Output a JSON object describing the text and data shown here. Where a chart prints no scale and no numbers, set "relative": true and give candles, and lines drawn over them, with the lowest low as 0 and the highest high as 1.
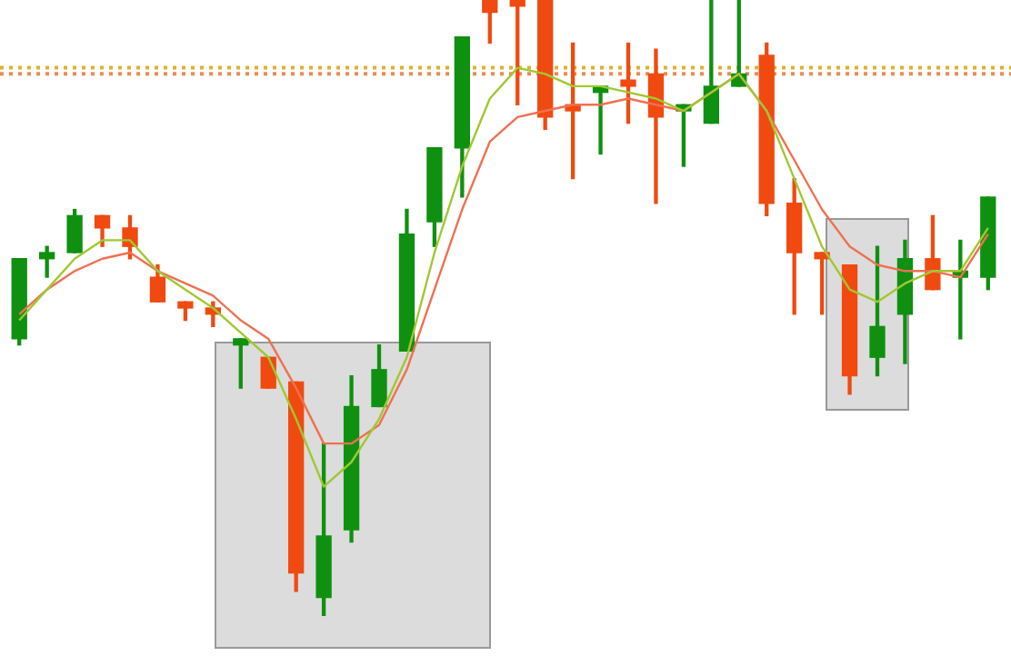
{
  "chart_data": {
    "type": "candlestick",
    "relative": true,
    "categories": [
      null,
      null,
      null,
      null,
      null,
      null,
      null,
      null,
      null,
      null,
      null,
      null,
      null,
      null,
      null,
      null,
      null,
      null,
      null,
      null,
      null,
      null,
      null,
      null,
      null,
      null,
      null,
      null,
      null,
      null,
      null,
      null,
      null,
      null,
      null,
      null
    ],
    "ohlc": [
      [
        0.45,
        0.58,
        0.44,
        0.58
      ],
      [
        0.58,
        0.6,
        0.55,
        0.59
      ],
      [
        0.59,
        0.66,
        0.59,
        0.65
      ],
      [
        0.65,
        0.65,
        0.6,
        0.63
      ],
      [
        0.63,
        0.65,
        0.58,
        0.6
      ],
      [
        0.55,
        0.57,
        0.51,
        0.51
      ],
      [
        0.51,
        0.51,
        0.48,
        0.5
      ],
      [
        0.5,
        0.51,
        0.47,
        0.49
      ],
      [
        0.44,
        0.45,
        0.37,
        0.45
      ],
      [
        0.42,
        0.42,
        0.37,
        0.37
      ],
      [
        0.38,
        0.38,
        0.04,
        0.07
      ],
      [
        0.03,
        0.28,
        0,
        0.13
      ],
      [
        0.14,
        0.39,
        0.12,
        0.34
      ],
      [
        0.34,
        0.44,
        0.34,
        0.4
      ],
      [
        0.43,
        0.66,
        0.43,
        0.62
      ],
      [
        0.64,
        0.76,
        0.6,
        0.76
      ],
      [
        0.76,
        0.94,
        0.68,
        0.94
      ],
      [
        1,
        1,
        0.93,
        0.98
      ],
      [
        1,
        1,
        0.83,
        0.99
      ],
      [
        1,
        1,
        0.79,
        0.81
      ],
      [
        0.83,
        0.93,
        0.71,
        0.82
      ],
      [
        0.85,
        0.86,
        0.75,
        0.86
      ],
      [
        0.87,
        0.93,
        0.8,
        0.86
      ],
      [
        0.88,
        0.92,
        0.67,
        0.81
      ],
      [
        0.82,
        0.83,
        0.73,
        0.83
      ],
      [
        0.8,
        1,
        0.8,
        0.86
      ],
      [
        0.86,
        1,
        0.86,
        0.88
      ],
      [
        0.91,
        0.93,
        0.65,
        0.67
      ],
      [
        0.67,
        0.71,
        0.49,
        0.59
      ],
      [
        0.59,
        0.59,
        0.49,
        0.58
      ],
      [
        0.57,
        0.57,
        0.36,
        0.39
      ],
      [
        0.42,
        0.6,
        0.39,
        0.47
      ],
      [
        0.49,
        0.61,
        0.41,
        0.58
      ],
      [
        0.58,
        0.65,
        0.53,
        0.53
      ],
      [
        0.55,
        0.61,
        0.45,
        0.56
      ],
      [
        0.55,
        0.68,
        0.53,
        0.68
      ]
    ],
    "colors": [
      "#109010",
      "#109010",
      "#109010",
      "#f04a10",
      "#f04a10",
      "#f04a10",
      "#f04a10",
      "#f04a10",
      "#109010",
      "#f04a10",
      "#f04a10",
      "#109010",
      "#109010",
      "#109010",
      "#109010",
      "#109010",
      "#109010",
      "#f04a10",
      "#f04a10",
      "#f04a10",
      "#f04a10",
      "#109010",
      "#f04a10",
      "#f04a10",
      "#109010",
      "#109010",
      "#109010",
      "#f04a10",
      "#f04a10",
      "#f04a10",
      "#f04a10",
      "#109010",
      "#109010",
      "#f04a10",
      "#109010",
      "#109010"
    ],
    "series": [
      {
        "type": "line",
        "color": "#a0c830",
        "values": [
          0.48,
          0.53,
          0.58,
          0.61,
          0.61,
          0.56,
          0.53,
          0.5,
          0.46,
          0.42,
          0.32,
          0.21,
          0.25,
          0.32,
          0.42,
          0.59,
          0.73,
          0.84,
          0.89,
          0.88,
          0.86,
          0.86,
          0.85,
          0.84,
          0.82,
          0.85,
          0.88,
          0.82,
          0.71,
          0.6,
          0.53,
          0.51,
          0.54,
          0.56,
          0.56,
          0.63
        ]
      },
      {
        "type": "line",
        "color": "#f07050",
        "values": [
          0.49,
          0.53,
          0.56,
          0.58,
          0.59,
          0.56,
          0.54,
          0.52,
          0.48,
          0.45,
          0.37,
          0.28,
          0.28,
          0.31,
          0.4,
          0.53,
          0.66,
          0.77,
          0.81,
          0.82,
          0.83,
          0.83,
          0.84,
          0.83,
          0.82,
          0.85,
          0.88,
          0.82,
          0.74,
          0.66,
          0.6,
          0.57,
          0.56,
          0.56,
          0.55,
          0.62
        ]
      }
    ],
    "ref_lines": [
      {
        "axis": "y",
        "value": 0.89,
        "color": "#e0b030",
        "line_style": "dotted"
      },
      {
        "axis": "y",
        "value": 0.88,
        "color": "#f08a50",
        "line_style": "dotted"
      }
    ],
    "marker": "none"
  }
}
